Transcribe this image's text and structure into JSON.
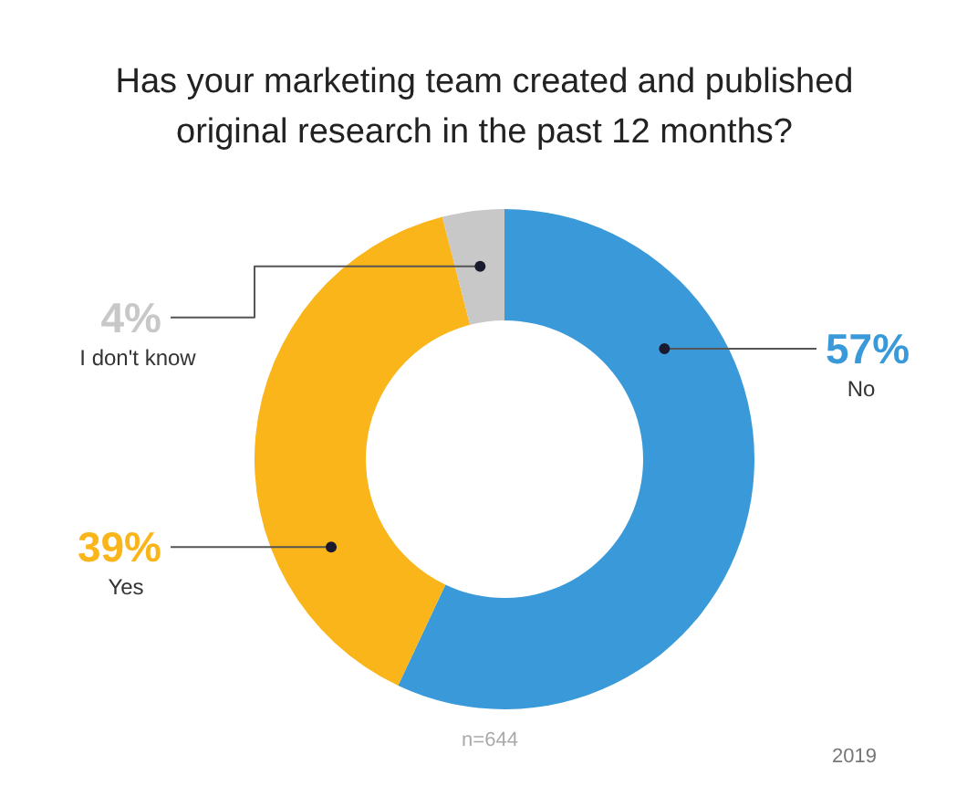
{
  "chart_data": {
    "type": "donut",
    "title": "Has your marketing team created and published original research in the past 12 months?",
    "categories": [
      "No",
      "Yes",
      "I don't know"
    ],
    "values": [
      57,
      39,
      4
    ],
    "colors": [
      "#3a9ad9",
      "#f9b51a",
      "#c8c8c8"
    ],
    "value_labels": [
      "57%",
      "39%",
      "4%"
    ],
    "annotations": [
      "n=644",
      "2019"
    ]
  }
}
